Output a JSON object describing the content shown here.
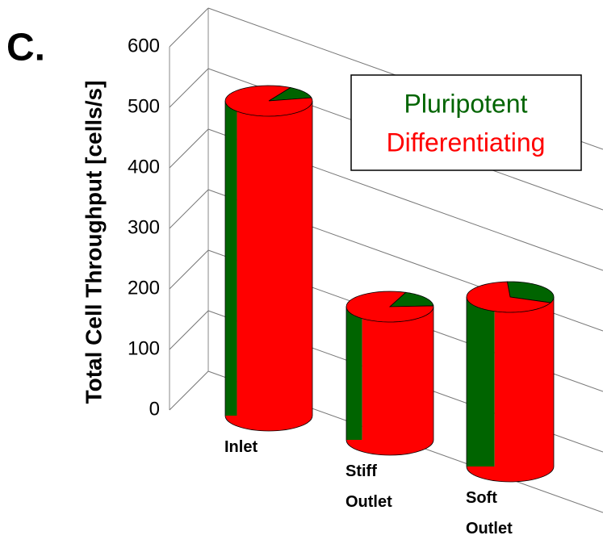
{
  "chart_data": {
    "type": "cylinder-bar",
    "panel_label": "C.",
    "y_label": "Total Cell Throughput [cells/s]",
    "categories": [
      "Inlet",
      "Stiff\nOutlet",
      "Soft\nOutlet"
    ],
    "series": [
      {
        "name": "Pluripotent",
        "color": "#006400",
        "values": [
          70,
          40,
          90
        ]
      },
      {
        "name": "Differentiating",
        "color": "#ff0000",
        "values": [
          450,
          180,
          190
        ]
      }
    ],
    "ylim": [
      0,
      600
    ],
    "yticks": [
      0,
      100,
      200,
      300,
      400,
      500,
      600
    ],
    "grid": true,
    "legend": "upper right"
  }
}
